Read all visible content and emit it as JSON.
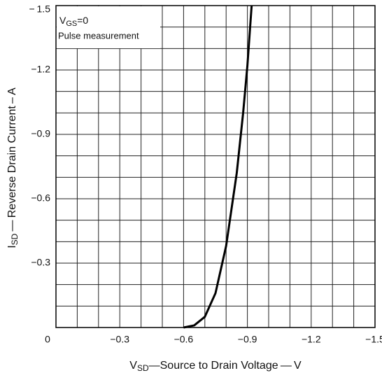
{
  "chart_data": {
    "type": "line",
    "x_label": {
      "symbol": "V",
      "subscript": "SD",
      "text": "—Source to Drain Voltage — V"
    },
    "y_label": {
      "symbol": "I",
      "subscript": "SD",
      "text": " — Reverse Drain Current – A"
    },
    "annotations": [
      {
        "symbol": "V",
        "subscript": "GS",
        "text": "=0"
      },
      {
        "text": "Pulse measurement"
      }
    ],
    "x": [
      -0.6,
      -0.65,
      -0.7,
      -0.75,
      -0.8,
      -0.85,
      -0.88,
      -0.9,
      -0.92
    ],
    "values": [
      0,
      -0.01,
      -0.05,
      -0.16,
      -0.38,
      -0.72,
      -1.0,
      -1.22,
      -1.5
    ],
    "color": "#000000",
    "xlim": [
      0,
      -1.5
    ],
    "ylim": [
      0,
      -1.5
    ],
    "xticks": [
      0,
      {
        "value": -0.3,
        "label": "−0.3"
      },
      {
        "value": -0.6,
        "label": "−0.6"
      },
      {
        "value": -0.9,
        "label": "−0.9"
      },
      {
        "value": -1.2,
        "label": "−1.2"
      },
      {
        "value": -1.5,
        "label": "−1.5"
      }
    ],
    "yticks": [
      {
        "value": -0.3,
        "label": "−0.3"
      },
      {
        "value": -0.6,
        "label": "−0.6"
      },
      {
        "value": -0.9,
        "label": "−0.9"
      },
      {
        "value": -1.2,
        "label": "−1.2"
      },
      {
        "value": -1.5,
        "label": "− 1.5"
      }
    ],
    "xgrid": [
      -0.1,
      -0.2,
      -0.3,
      -0.4,
      -0.5,
      -0.6,
      -0.7,
      -0.8,
      -0.9,
      -1.0,
      -1.1,
      -1.2,
      -1.3,
      -1.4
    ],
    "ygrid": [
      -0.1,
      -0.2,
      -0.3,
      -0.4,
      -0.5,
      -0.6,
      -0.7,
      -0.8,
      -0.9,
      -1.0,
      -1.1,
      -1.2,
      -1.3,
      -1.4
    ],
    "grid": true
  }
}
